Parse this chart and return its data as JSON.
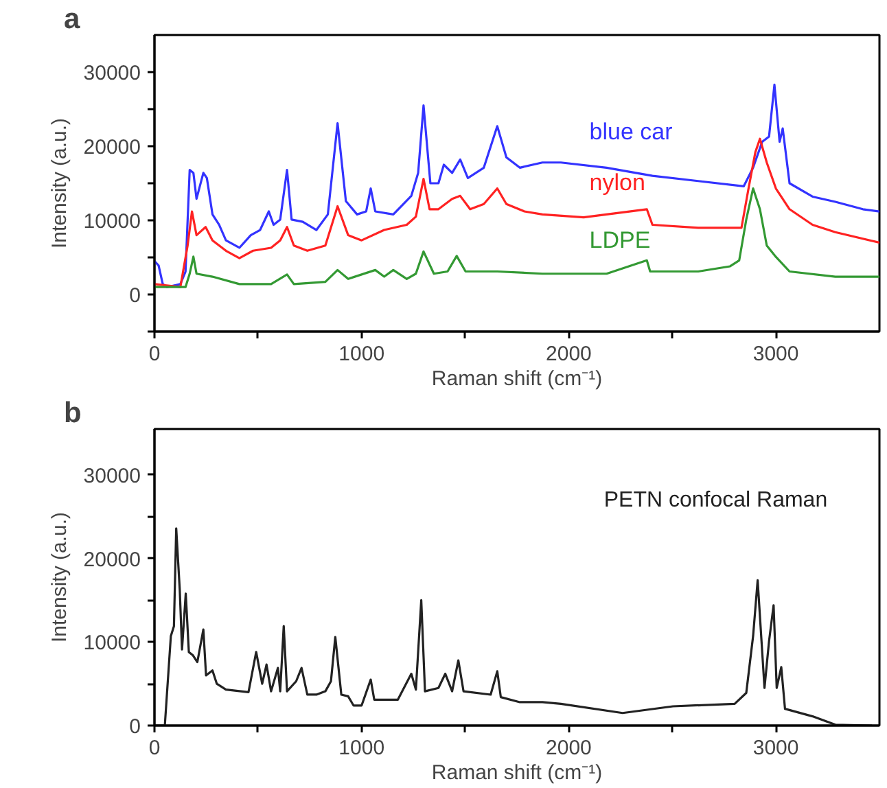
{
  "chart_data": [
    {
      "type": "line",
      "title": "a",
      "xlabel": "Raman shift (cm⁻¹)",
      "ylabel": "Intensity (a.u.)",
      "xlim": [
        0,
        3500
      ],
      "ylim": [
        -5000,
        35000
      ],
      "xticks": [
        0,
        {
          "value": 500,
          "label": null
        },
        1000,
        {
          "value": 1500,
          "label": null
        },
        2000,
        {
          "value": 2500,
          "label": null
        },
        3000
      ],
      "yticks": [
        {
          "value": -5000,
          "label": null
        },
        0,
        {
          "value": 5000,
          "label": null
        },
        10000,
        {
          "value": 15000,
          "label": null
        },
        20000,
        {
          "value": 25000,
          "label": null
        },
        30000
      ],
      "grid": false,
      "series": [
        {
          "name": "blue car",
          "color": "#3333ff",
          "x": [
            0,
            20,
            40,
            60,
            125,
            150,
            170,
            188,
            203,
            236,
            253,
            280,
            312,
            345,
            410,
            465,
            510,
            552,
            575,
            607,
            640,
            662,
            716,
            782,
            837,
            884,
            924,
            978,
            1022,
            1044,
            1066,
            1153,
            1240,
            1273,
            1299,
            1332,
            1371,
            1397,
            1437,
            1476,
            1513,
            1590,
            1655,
            1699,
            1764,
            1873,
            1962,
            2183,
            2404,
            2625,
            2845,
            2890,
            2934,
            2967,
            2993,
            3018,
            3033,
            3066,
            3177,
            3287,
            3420,
            3500
          ],
          "values": [
            4500,
            3900,
            1400,
            1000,
            1400,
            3100,
            16800,
            16400,
            12900,
            16400,
            15700,
            10800,
            9400,
            7300,
            6300,
            8000,
            8700,
            11200,
            9400,
            10100,
            16800,
            10100,
            9800,
            8700,
            10800,
            23100,
            12600,
            10800,
            11200,
            14300,
            11200,
            10800,
            13300,
            16400,
            25500,
            15000,
            15000,
            17500,
            16400,
            18200,
            15700,
            17100,
            22700,
            18500,
            17100,
            17800,
            17800,
            17100,
            16000,
            15300,
            14600,
            17100,
            20600,
            21300,
            28300,
            20600,
            22400,
            15000,
            13200,
            12500,
            11500,
            11200
          ]
        },
        {
          "name": "nylon",
          "color": "#ff2222",
          "x": [
            0,
            125,
            160,
            181,
            203,
            247,
            280,
            345,
            410,
            476,
            563,
            607,
            640,
            673,
            738,
            825,
            884,
            935,
            1000,
            1109,
            1218,
            1262,
            1299,
            1328,
            1371,
            1437,
            1476,
            1524,
            1590,
            1655,
            1699,
            1786,
            1873,
            2072,
            2377,
            2404,
            2625,
            2834,
            2868,
            2901,
            2923,
            2956,
            3000,
            3066,
            3177,
            3287,
            3500
          ],
          "values": [
            1400,
            1000,
            6600,
            11200,
            8000,
            9100,
            7300,
            5900,
            4900,
            5900,
            6300,
            7300,
            9100,
            6600,
            5900,
            6600,
            11900,
            8000,
            7300,
            8700,
            9400,
            10500,
            15600,
            11500,
            11500,
            12900,
            13300,
            11500,
            12200,
            14300,
            12200,
            11200,
            10800,
            10400,
            11500,
            9400,
            9000,
            9000,
            14300,
            19200,
            21000,
            17800,
            14300,
            11500,
            9400,
            8400,
            7000
          ]
        },
        {
          "name": "LDPE",
          "color": "#339933",
          "x": [
            0,
            150,
            170,
            188,
            203,
            280,
            410,
            563,
            640,
            673,
            825,
            884,
            935,
            1066,
            1109,
            1153,
            1218,
            1262,
            1299,
            1349,
            1415,
            1459,
            1502,
            1655,
            1873,
            2183,
            2377,
            2393,
            2625,
            2779,
            2823,
            2857,
            2890,
            2923,
            2956,
            2996,
            3066,
            3287,
            3500
          ],
          "values": [
            1000,
            1000,
            2800,
            5100,
            2800,
            2400,
            1400,
            1400,
            2700,
            1400,
            1700,
            3300,
            2100,
            3300,
            2400,
            3300,
            2100,
            2800,
            5800,
            2800,
            3100,
            5200,
            3100,
            3100,
            2800,
            2800,
            4600,
            3100,
            3100,
            3800,
            4600,
            10100,
            14300,
            11500,
            6600,
            5200,
            3100,
            2400,
            2400
          ]
        }
      ]
    },
    {
      "type": "line",
      "title": "b",
      "xlabel": "Raman shift (cm⁻¹)",
      "ylabel": "Intensity (a.u.)",
      "xlim": [
        0,
        3500
      ],
      "ylim": [
        0,
        35500
      ],
      "xticks": [
        0,
        {
          "value": 500,
          "label": null
        },
        1000,
        {
          "value": 1500,
          "label": null
        },
        2000,
        {
          "value": 2500,
          "label": null
        },
        3000
      ],
      "yticks": [
        0,
        {
          "value": 5000,
          "label": null
        },
        10000,
        {
          "value": 15000,
          "label": null
        },
        20000,
        {
          "value": 25000,
          "label": null
        },
        30000
      ],
      "grid": false,
      "series": [
        {
          "name": "PETN confocal Raman",
          "color": "#222222",
          "x": [
            0,
            50,
            79,
            94,
            105,
            122,
            133,
            151,
            166,
            186,
            207,
            236,
            249,
            280,
            301,
            345,
            454,
            491,
            520,
            541,
            563,
            596,
            607,
            624,
            640,
            684,
            710,
            738,
            782,
            825,
            852,
            873,
            902,
            935,
            961,
            1000,
            1044,
            1061,
            1175,
            1240,
            1262,
            1288,
            1306,
            1371,
            1404,
            1437,
            1467,
            1492,
            1623,
            1655,
            1672,
            1764,
            1873,
            1962,
            2260,
            2503,
            2801,
            2857,
            2890,
            2912,
            2945,
            2967,
            2989,
            3004,
            3026,
            3044,
            3177,
            3287,
            3464
          ],
          "values": [
            0,
            0,
            10700,
            11900,
            23600,
            16300,
            9100,
            15800,
            8800,
            8400,
            7600,
            11500,
            6000,
            6600,
            5000,
            4300,
            4000,
            8800,
            5000,
            7300,
            4100,
            6900,
            4100,
            11900,
            4100,
            5300,
            6900,
            3700,
            3700,
            4100,
            5300,
            10600,
            3700,
            3500,
            2400,
            2400,
            5500,
            3100,
            3100,
            6200,
            4300,
            15000,
            4100,
            4500,
            6200,
            4100,
            7800,
            4100,
            3700,
            6500,
            3400,
            2800,
            2800,
            2600,
            1500,
            2300,
            2600,
            3900,
            10700,
            17400,
            4500,
            10100,
            14400,
            4500,
            7000,
            2000,
            1100,
            100,
            0
          ]
        }
      ]
    }
  ]
}
